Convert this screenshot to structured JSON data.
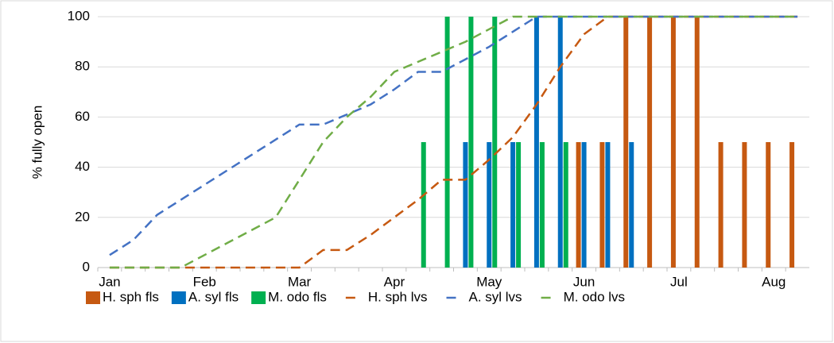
{
  "chart_data": {
    "type": "bar",
    "y_label": "% fully open",
    "categories": [
      "Jan",
      null,
      null,
      null,
      "Feb",
      null,
      null,
      null,
      "Mar",
      null,
      null,
      null,
      "Apr",
      null,
      null,
      null,
      "May",
      null,
      null,
      null,
      "Jun",
      null,
      null,
      null,
      "Jul",
      null,
      null,
      null,
      "Aug",
      null
    ],
    "series": [
      {
        "name": "H. sph fls",
        "type": "bar",
        "color": "#c65911",
        "values": [
          null,
          null,
          null,
          null,
          null,
          null,
          null,
          null,
          null,
          null,
          null,
          null,
          null,
          null,
          null,
          null,
          null,
          null,
          null,
          null,
          50,
          50,
          100,
          100,
          100,
          100,
          50,
          50,
          50,
          50
        ]
      },
      {
        "name": "A. syl fls",
        "type": "bar",
        "color": "#0070c0",
        "values": [
          null,
          null,
          null,
          null,
          null,
          null,
          null,
          null,
          null,
          null,
          null,
          null,
          null,
          null,
          null,
          50,
          50,
          50,
          100,
          100,
          50,
          50,
          50,
          null,
          null,
          null,
          null,
          null,
          null,
          null
        ]
      },
      {
        "name": "M. odo fls",
        "type": "bar",
        "color": "#00b050",
        "values": [
          null,
          null,
          null,
          null,
          null,
          null,
          null,
          null,
          null,
          null,
          null,
          null,
          null,
          50,
          100,
          100,
          100,
          50,
          50,
          50,
          null,
          null,
          null,
          null,
          null,
          null,
          null,
          null,
          null,
          null
        ]
      },
      {
        "name": "H. sph lvs",
        "type": "line",
        "color": "#c65911",
        "values": [
          0,
          0,
          0,
          0,
          0,
          0,
          0,
          0,
          0,
          7,
          7,
          13,
          20,
          27,
          35,
          35,
          43,
          52,
          65,
          80,
          93,
          100,
          100,
          100,
          100,
          100,
          100,
          100,
          100,
          100
        ]
      },
      {
        "name": "A. syl lvs",
        "type": "line",
        "color": "#4472c4",
        "values": [
          5,
          11,
          21,
          27,
          33,
          39,
          45,
          51,
          57,
          57,
          61,
          65,
          71,
          78,
          78,
          83,
          88,
          94,
          100,
          100,
          100,
          100,
          100,
          100,
          100,
          100,
          100,
          100,
          100,
          100
        ]
      },
      {
        "name": "M. odo lvs",
        "type": "line",
        "color": "#70ad47",
        "values": [
          0,
          0,
          0,
          0,
          5,
          10,
          15,
          20,
          35,
          50,
          60,
          68,
          78,
          82,
          86,
          90,
          95,
          100,
          100,
          100,
          100,
          100,
          100,
          100,
          100,
          100,
          100,
          100,
          100,
          100
        ]
      }
    ],
    "ylim": [
      0,
      100
    ],
    "yticks": [
      0,
      20,
      40,
      60,
      80,
      100
    ],
    "grid": true,
    "legend": "bottom"
  }
}
